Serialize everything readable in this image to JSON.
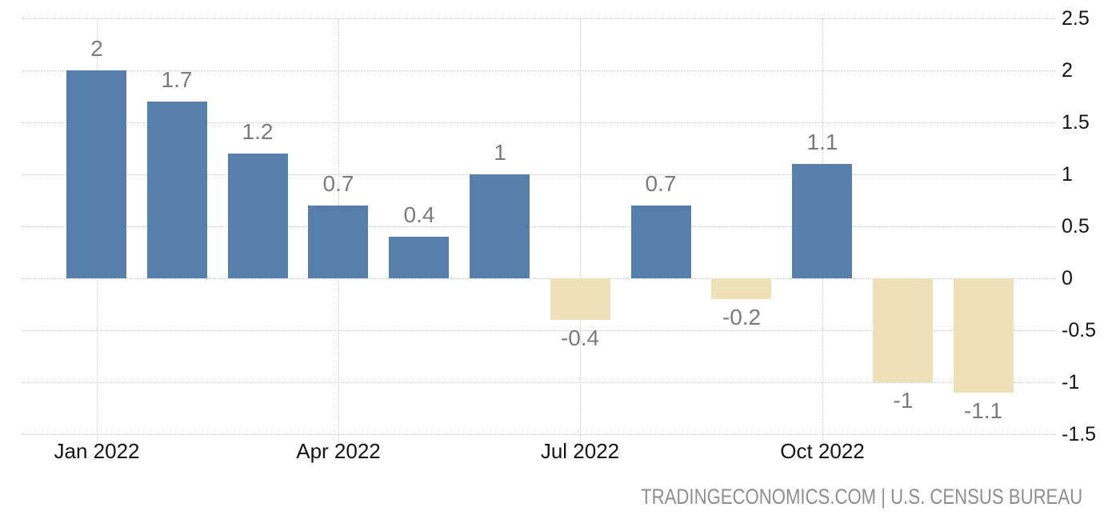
{
  "chart_data": {
    "type": "bar",
    "title": "",
    "xlabel": "",
    "ylabel": "",
    "categories": [
      "Jan 2022",
      "Feb 2022",
      "Mar 2022",
      "Apr 2022",
      "May 2022",
      "Jun 2022",
      "Jul 2022",
      "Aug 2022",
      "Sep 2022",
      "Oct 2022",
      "Nov 2022",
      "Dec 2022"
    ],
    "values": [
      2,
      1.7,
      1.2,
      0.7,
      0.4,
      1,
      -0.4,
      0.7,
      -0.2,
      1.1,
      -1,
      -1.1
    ],
    "bar_labels": [
      "2",
      "1.7",
      "1.2",
      "0.7",
      "0.4",
      "1",
      "-0.4",
      "0.7",
      "-0.2",
      "1.1",
      "-1",
      "-1.1"
    ],
    "x_tick_labels": [
      "Jan 2022",
      "Apr 2022",
      "Jul 2022",
      "Oct 2022"
    ],
    "x_tick_bar_indices": [
      0,
      3,
      6,
      9
    ],
    "y_tick_labels": [
      "2.5",
      "2",
      "1.5",
      "1",
      "0.5",
      "0",
      "-0.5",
      "-1",
      "-1.5"
    ],
    "y_ticks": [
      2.5,
      2,
      1.5,
      1,
      0.5,
      0,
      -0.5,
      -1,
      -1.5
    ],
    "ylim": [
      -1.5,
      2.5
    ],
    "grid": true,
    "legend_position": "none",
    "colors": {
      "positive_bar": "#567FAB",
      "negative_bar": "#F0E0B8",
      "gridline": "#C9C9C9",
      "axis_label": "#141414",
      "data_label": "#7B7B7B"
    }
  },
  "attribution": {
    "text": "TRADINGECONOMICS.COM | U.S. CENSUS BUREAU",
    "color": "#8E8E8E"
  }
}
